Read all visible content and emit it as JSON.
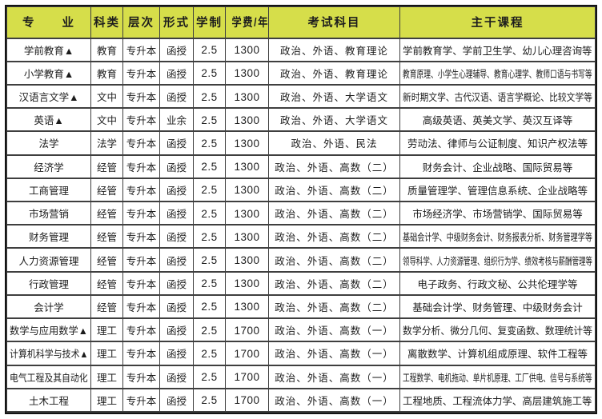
{
  "table": {
    "headers": [
      "专　　业",
      "科类",
      "层次",
      "形式",
      "学制",
      "学费/年",
      "考试科目",
      "主干课程"
    ],
    "rows": [
      {
        "major": "学前教育▲",
        "category": "教育",
        "level": "专升本",
        "form": "函授",
        "duration": "2.5",
        "tuition": "1300",
        "exams": "政治、外语、教育理论",
        "courses": "学前教育学、学前卫生学、幼儿心理咨询等"
      },
      {
        "major": "小学教育▲",
        "category": "教育",
        "level": "专升本",
        "form": "函授",
        "duration": "2.5",
        "tuition": "1300",
        "exams": "政治、外语、教育理论",
        "courses": "教育原理、小学生心理辅导、教育心理学、教师口语与书写等"
      },
      {
        "major": "汉语言文学▲",
        "category": "文中",
        "level": "专升本",
        "form": "函授",
        "duration": "2.5",
        "tuition": "1300",
        "exams": "政治、外语、大学语文",
        "courses": "新时期文学、古代汉语、语言学概论、比较文学等"
      },
      {
        "major": "英语▲",
        "category": "文中",
        "level": "专升本",
        "form": "业余",
        "duration": "2.5",
        "tuition": "1300",
        "exams": "政治、外语、大学语文",
        "courses": "高级英语、英美文学、英汉互译等"
      },
      {
        "major": "法学",
        "category": "法学",
        "level": "专升本",
        "form": "函授",
        "duration": "2.5",
        "tuition": "1300",
        "exams": "政治、外语、民法",
        "courses": "劳动法、律师与公证制度、知识产权法等"
      },
      {
        "major": "经济学",
        "category": "经管",
        "level": "专升本",
        "form": "函授",
        "duration": "2.5",
        "tuition": "1300",
        "exams": "政治、外语、高数（二）",
        "courses": "财务会计、企业战略、国际贸易等"
      },
      {
        "major": "工商管理",
        "category": "经管",
        "level": "专升本",
        "form": "函授",
        "duration": "2.5",
        "tuition": "1300",
        "exams": "政治、外语、高数（二）",
        "courses": "质量管理学、管理信息系统、企业战略等"
      },
      {
        "major": "市场营销",
        "category": "经管",
        "level": "专升本",
        "form": "函授",
        "duration": "2.5",
        "tuition": "1300",
        "exams": "政治、外语、高数（二）",
        "courses": "市场经济学、市场营销学、国际贸易等"
      },
      {
        "major": "财务管理",
        "category": "经管",
        "level": "专升本",
        "form": "函授",
        "duration": "2.5",
        "tuition": "1300",
        "exams": "政治、外语、高数（二）",
        "courses": "基础会计学、中级财务会计、财务报表分析、财务管理学等"
      },
      {
        "major": "人力资源管理",
        "category": "经管",
        "level": "专升本",
        "form": "函授",
        "duration": "2.5",
        "tuition": "1300",
        "exams": "政治、外语、高数（二）",
        "courses": "领导科学、人力资源管理、组织行为学、绩效考核与薪酬管理等"
      },
      {
        "major": "行政管理",
        "category": "经管",
        "level": "专升本",
        "form": "函授",
        "duration": "2.5",
        "tuition": "1300",
        "exams": "政治、外语、高数（二）",
        "courses": "电子政务、行政文秘、公共伦理学等"
      },
      {
        "major": "会计学",
        "category": "经管",
        "level": "专升本",
        "form": "函授",
        "duration": "2.5",
        "tuition": "1300",
        "exams": "政治、外语、高数（二）",
        "courses": "基础会计学、财务管理、中级财务会计"
      },
      {
        "major": "数学与应用数学▲",
        "category": "理工",
        "level": "专升本",
        "form": "函授",
        "duration": "2.5",
        "tuition": "1700",
        "exams": "政治、外语、高数（一）",
        "courses": "数学分析、微分几何、复变函数、数理统计等"
      },
      {
        "major": "计算机科学与技术▲",
        "category": "理工",
        "level": "专升本",
        "form": "函授",
        "duration": "2.5",
        "tuition": "1700",
        "exams": "政治、外语、高数（一）",
        "courses": "离散数学、计算机组成原理、软件工程等"
      },
      {
        "major": "电气工程及其自动化",
        "category": "理工",
        "level": "专升本",
        "form": "函授",
        "duration": "2.5",
        "tuition": "1700",
        "exams": "政治、外语、高数（一）",
        "courses": "工程数学、电机拖动、单片机原理、工厂供电、信号与系统等"
      },
      {
        "major": "土木工程",
        "category": "理工",
        "level": "专升本",
        "form": "函授",
        "duration": "2.5",
        "tuition": "1700",
        "exams": "政治、外语、高数（一）",
        "courses": "工程地质、工程流体力学、高层建筑施工等"
      }
    ]
  }
}
